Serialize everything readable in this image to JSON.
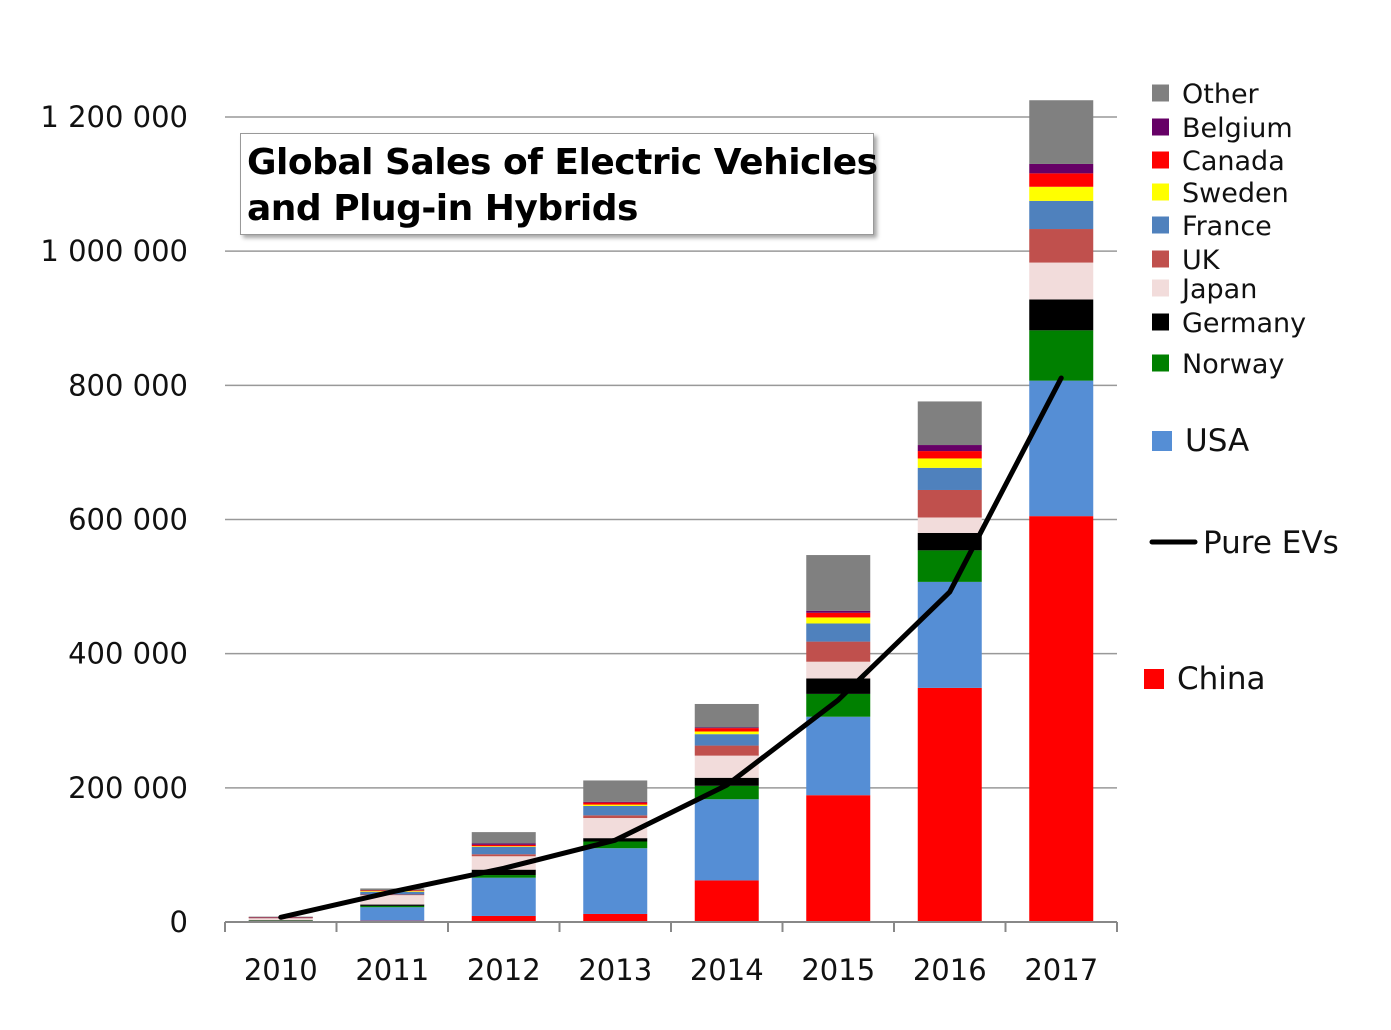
{
  "chart_data": {
    "type": "bar",
    "stacked": true,
    "title_lines": [
      "Global Sales of Electric Vehicles",
      "and Plug-in Hybrids"
    ],
    "categories": [
      "2010",
      "2011",
      "2012",
      "2013",
      "2014",
      "2015",
      "2016",
      "2017"
    ],
    "ylim": [
      0,
      1200000
    ],
    "yticks": [
      0,
      200000,
      400000,
      600000,
      800000,
      1000000,
      1200000
    ],
    "ytick_labels": [
      "0",
      "200 000",
      "400 000",
      "600 000",
      "800 000",
      "1 000 000",
      "1 200 000"
    ],
    "grid": true,
    "legend_placement": "right",
    "series": [
      {
        "name": "China",
        "color": "#ff0000",
        "values": [
          1000,
          2000,
          9000,
          12000,
          62000,
          189000,
          349000,
          605000
        ]
      },
      {
        "name": "USA",
        "color": "#558ed5",
        "values": [
          1000,
          20000,
          57000,
          98000,
          121000,
          117000,
          158000,
          202000
        ]
      },
      {
        "name": "Norway",
        "color": "#008000",
        "values": [
          300,
          2000,
          4000,
          10000,
          20000,
          34000,
          47000,
          75000
        ]
      },
      {
        "name": "Germany",
        "color": "#000000",
        "values": [
          300,
          2000,
          8000,
          5000,
          12000,
          23000,
          26000,
          46000
        ]
      },
      {
        "name": "Japan",
        "color": "#f2dcdb",
        "values": [
          3000,
          14000,
          20000,
          30000,
          33000,
          25000,
          23000,
          55000
        ]
      },
      {
        "name": "UK",
        "color": "#c0504d",
        "values": [
          700,
          1000,
          3000,
          4000,
          15000,
          30000,
          41000,
          50000
        ]
      },
      {
        "name": "France",
        "color": "#4f81bd",
        "values": [
          300,
          4000,
          11000,
          14000,
          17000,
          27000,
          33000,
          42000
        ]
      },
      {
        "name": "Sweden",
        "color": "#ffff00",
        "values": [
          100,
          1000,
          1000,
          2000,
          4000,
          9000,
          14000,
          21000
        ]
      },
      {
        "name": "Canada",
        "color": "#ff0000",
        "values": [
          200,
          1000,
          2000,
          3000,
          5000,
          7000,
          11000,
          20000
        ]
      },
      {
        "name": "Belgium",
        "color": "#660066",
        "values": [
          100,
          0,
          2000,
          1000,
          1000,
          3000,
          9000,
          14000
        ]
      },
      {
        "name": "Other",
        "color": "#808080",
        "values": [
          1000,
          3000,
          17000,
          32000,
          35000,
          83000,
          65000,
          95000
        ]
      }
    ],
    "line_series": {
      "name": "Pure EVs",
      "color": "#000000",
      "values": [
        7000,
        45000,
        80000,
        122000,
        204000,
        331000,
        492000,
        811000
      ]
    },
    "legend_order": [
      "Other",
      "Belgium",
      "Canada",
      "Sweden",
      "France",
      "UK",
      "Japan",
      "Germany",
      "Norway",
      "USA",
      "Pure EVs",
      "China"
    ]
  }
}
